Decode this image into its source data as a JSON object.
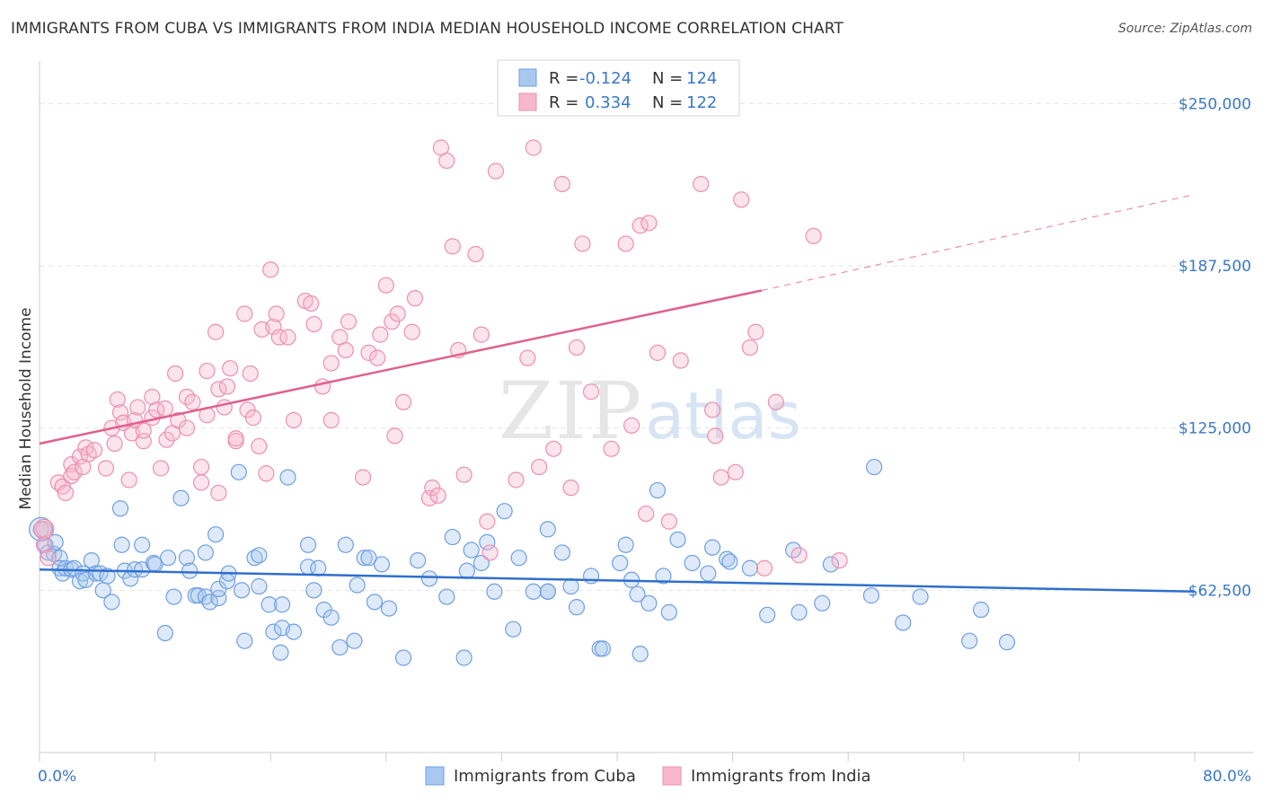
{
  "title": "IMMIGRANTS FROM CUBA VS IMMIGRANTS FROM INDIA MEDIAN HOUSEHOLD INCOME CORRELATION CHART",
  "source": "Source: ZipAtlas.com",
  "watermark": {
    "zip": "ZIP",
    "atlas": "atlas"
  },
  "legend": {
    "r_label": "R =",
    "n_label": "N =",
    "rows": [
      {
        "r": "-0.124",
        "n": "124",
        "color": "#a9c8f0",
        "stroke": "#6f9fe0"
      },
      {
        "r": "0.334",
        "n": "122",
        "color": "#f7b8cc",
        "stroke": "#ec8fae"
      }
    ]
  },
  "bottom_legend": [
    "Immigrants from Cuba",
    "Immigrants from India"
  ],
  "chart_data": {
    "type": "scatter",
    "ylabel": "Median Household Income",
    "x_tick_labels": [
      "0.0%",
      "80.0%"
    ],
    "y_tick_labels": [
      "$250,000",
      "$187,500",
      "$125,000",
      "$62,500"
    ],
    "y_ticks": [
      250000,
      187500,
      125000,
      62500
    ],
    "xlim": [
      0,
      80
    ],
    "ylim": [
      0,
      265000
    ],
    "series": [
      {
        "name": "Immigrants from Cuba",
        "color": "#6f9fe0",
        "line_color": "#2f6fce",
        "trend": {
          "x": [
            0,
            80
          ],
          "y": [
            70500,
            62000
          ]
        },
        "points": [
          [
            0.1,
            86000
          ],
          [
            0.4,
            80000
          ],
          [
            0.6,
            77000
          ],
          [
            1.0,
            76500
          ],
          [
            1.1,
            81000
          ],
          [
            1.4,
            75000
          ],
          [
            1.4,
            71000
          ],
          [
            1.6,
            69000
          ],
          [
            1.8,
            71000
          ],
          [
            2.2,
            70500
          ],
          [
            2.4,
            71000
          ],
          [
            2.8,
            66000
          ],
          [
            3.0,
            69000
          ],
          [
            3.2,
            66500
          ],
          [
            3.6,
            74000
          ],
          [
            3.9,
            69000
          ],
          [
            4.2,
            69000
          ],
          [
            4.4,
            62500
          ],
          [
            4.7,
            68000
          ],
          [
            5.0,
            58000
          ],
          [
            5.6,
            94000
          ],
          [
            5.7,
            80000
          ],
          [
            5.9,
            70000
          ],
          [
            6.3,
            67000
          ],
          [
            6.6,
            70500
          ],
          [
            7.1,
            80000
          ],
          [
            7.1,
            70500
          ],
          [
            7.9,
            73000
          ],
          [
            8.0,
            72500
          ],
          [
            8.7,
            46000
          ],
          [
            8.9,
            75000
          ],
          [
            9.3,
            60000
          ],
          [
            9.8,
            98000
          ],
          [
            10.2,
            75000
          ],
          [
            10.4,
            70000
          ],
          [
            10.8,
            60500
          ],
          [
            11.0,
            60500
          ],
          [
            11.5,
            60000
          ],
          [
            11.5,
            77000
          ],
          [
            11.8,
            58000
          ],
          [
            12.2,
            84000
          ],
          [
            12.4,
            59500
          ],
          [
            12.4,
            63000
          ],
          [
            13.0,
            66000
          ],
          [
            13.1,
            69000
          ],
          [
            13.8,
            108000
          ],
          [
            14.0,
            62500
          ],
          [
            14.2,
            43000
          ],
          [
            14.9,
            75000
          ],
          [
            15.2,
            76000
          ],
          [
            15.2,
            64000
          ],
          [
            15.9,
            57000
          ],
          [
            16.2,
            46500
          ],
          [
            16.7,
            38500
          ],
          [
            16.8,
            48000
          ],
          [
            16.8,
            57000
          ],
          [
            17.2,
            106000
          ],
          [
            17.6,
            46500
          ],
          [
            18.6,
            71500
          ],
          [
            18.6,
            80000
          ],
          [
            19.0,
            62500
          ],
          [
            19.3,
            71000
          ],
          [
            19.7,
            55000
          ],
          [
            20.2,
            52000
          ],
          [
            20.8,
            40500
          ],
          [
            21.2,
            80000
          ],
          [
            21.8,
            43000
          ],
          [
            22.0,
            64500
          ],
          [
            22.5,
            75000
          ],
          [
            22.8,
            75000
          ],
          [
            23.2,
            58000
          ],
          [
            23.7,
            72500
          ],
          [
            24.2,
            55500
          ],
          [
            25.2,
            36500
          ],
          [
            26.2,
            74000
          ],
          [
            27.0,
            67000
          ],
          [
            28.2,
            60000
          ],
          [
            28.6,
            83000
          ],
          [
            29.4,
            36500
          ],
          [
            29.6,
            70000
          ],
          [
            29.9,
            78000
          ],
          [
            30.6,
            73000
          ],
          [
            31.0,
            81000
          ],
          [
            31.5,
            62000
          ],
          [
            32.2,
            93000
          ],
          [
            32.8,
            47500
          ],
          [
            33.2,
            75000
          ],
          [
            34.2,
            62000
          ],
          [
            35.2,
            86000
          ],
          [
            35.2,
            62000
          ],
          [
            35.2,
            62000
          ],
          [
            36.2,
            77000
          ],
          [
            36.8,
            64000
          ],
          [
            37.2,
            56000
          ],
          [
            38.2,
            68000
          ],
          [
            38.8,
            40000
          ],
          [
            39.0,
            40000
          ],
          [
            40.2,
            73000
          ],
          [
            40.6,
            80000
          ],
          [
            41.0,
            66500
          ],
          [
            41.4,
            61000
          ],
          [
            41.6,
            38000
          ],
          [
            42.2,
            57500
          ],
          [
            42.8,
            101000
          ],
          [
            43.2,
            68000
          ],
          [
            43.6,
            54000
          ],
          [
            44.2,
            82000
          ],
          [
            45.2,
            73000
          ],
          [
            46.3,
            69000
          ],
          [
            46.6,
            79000
          ],
          [
            47.6,
            74500
          ],
          [
            47.8,
            73500
          ],
          [
            49.2,
            71000
          ],
          [
            50.4,
            53000
          ],
          [
            52.2,
            78000
          ],
          [
            52.6,
            54000
          ],
          [
            54.2,
            57500
          ],
          [
            54.8,
            72500
          ],
          [
            57.6,
            60500
          ],
          [
            57.8,
            110000
          ],
          [
            59.8,
            50000
          ],
          [
            61.0,
            60000
          ],
          [
            64.4,
            43000
          ],
          [
            65.2,
            55000
          ],
          [
            67.0,
            42500
          ]
        ]
      },
      {
        "name": "Immigrants from India",
        "color": "#ec8fae",
        "line_color": "#e0618d",
        "trend": {
          "x": [
            0,
            50
          ],
          "y": [
            119000,
            178000
          ]
        },
        "trend_dashed": {
          "x": [
            50,
            80
          ],
          "y": [
            178000,
            215000
          ]
        },
        "points": [
          [
            0.3,
            80000
          ],
          [
            0.3,
            86000
          ],
          [
            0.6,
            75000
          ],
          [
            1.3,
            104000
          ],
          [
            1.6,
            102500
          ],
          [
            1.8,
            100000
          ],
          [
            2.2,
            111000
          ],
          [
            2.2,
            106500
          ],
          [
            2.4,
            108000
          ],
          [
            2.8,
            114000
          ],
          [
            3.0,
            110000
          ],
          [
            3.2,
            117500
          ],
          [
            3.4,
            115000
          ],
          [
            3.8,
            116500
          ],
          [
            4.6,
            109500
          ],
          [
            5.0,
            125000
          ],
          [
            5.2,
            119000
          ],
          [
            5.4,
            136000
          ],
          [
            5.6,
            131000
          ],
          [
            5.8,
            127000
          ],
          [
            6.2,
            105000
          ],
          [
            6.4,
            123000
          ],
          [
            6.6,
            128000
          ],
          [
            6.8,
            133000
          ],
          [
            7.2,
            120000
          ],
          [
            7.2,
            124000
          ],
          [
            7.8,
            137000
          ],
          [
            7.8,
            129000
          ],
          [
            8.1,
            132000
          ],
          [
            8.4,
            109500
          ],
          [
            8.7,
            132500
          ],
          [
            8.8,
            120500
          ],
          [
            9.2,
            123000
          ],
          [
            9.4,
            146000
          ],
          [
            9.6,
            128000
          ],
          [
            10.2,
            137000
          ],
          [
            10.2,
            125000
          ],
          [
            10.6,
            135000
          ],
          [
            11.2,
            104000
          ],
          [
            11.2,
            110000
          ],
          [
            11.6,
            130000
          ],
          [
            11.6,
            147000
          ],
          [
            12.2,
            162000
          ],
          [
            12.4,
            140000
          ],
          [
            12.4,
            100000
          ],
          [
            12.8,
            133000
          ],
          [
            13.0,
            141000
          ],
          [
            13.2,
            148000
          ],
          [
            13.6,
            120000
          ],
          [
            13.6,
            121000
          ],
          [
            14.2,
            169000
          ],
          [
            14.4,
            132000
          ],
          [
            14.6,
            146000
          ],
          [
            14.8,
            129000
          ],
          [
            15.2,
            118000
          ],
          [
            15.4,
            163000
          ],
          [
            15.7,
            107500
          ],
          [
            16.0,
            186000
          ],
          [
            16.2,
            164000
          ],
          [
            16.4,
            169000
          ],
          [
            16.6,
            160000
          ],
          [
            17.2,
            160000
          ],
          [
            17.6,
            128000
          ],
          [
            18.4,
            174000
          ],
          [
            18.8,
            173000
          ],
          [
            19.0,
            165000
          ],
          [
            19.6,
            141000
          ],
          [
            20.2,
            128000
          ],
          [
            20.2,
            150000
          ],
          [
            20.8,
            160000
          ],
          [
            21.2,
            155000
          ],
          [
            21.4,
            166000
          ],
          [
            22.4,
            106000
          ],
          [
            22.8,
            154000
          ],
          [
            23.4,
            152000
          ],
          [
            23.6,
            161000
          ],
          [
            24.0,
            180000
          ],
          [
            24.4,
            166000
          ],
          [
            24.6,
            122000
          ],
          [
            24.8,
            169000
          ],
          [
            25.2,
            135000
          ],
          [
            25.8,
            162000
          ],
          [
            26.0,
            175000
          ],
          [
            27.0,
            98000
          ],
          [
            27.2,
            102000
          ],
          [
            27.6,
            99000
          ],
          [
            27.8,
            233000
          ],
          [
            28.2,
            228000
          ],
          [
            28.6,
            195000
          ],
          [
            29.0,
            155000
          ],
          [
            29.4,
            107000
          ],
          [
            30.2,
            192000
          ],
          [
            30.6,
            161000
          ],
          [
            31.0,
            89000
          ],
          [
            31.2,
            77000
          ],
          [
            31.6,
            224000
          ],
          [
            33.0,
            105000
          ],
          [
            33.8,
            152000
          ],
          [
            34.2,
            233000
          ],
          [
            34.6,
            110000
          ],
          [
            35.6,
            117000
          ],
          [
            36.2,
            219000
          ],
          [
            36.8,
            102000
          ],
          [
            37.2,
            156000
          ],
          [
            37.6,
            196000
          ],
          [
            38.2,
            139000
          ],
          [
            39.6,
            117000
          ],
          [
            40.6,
            196000
          ],
          [
            41.0,
            126000
          ],
          [
            41.6,
            203000
          ],
          [
            42.0,
            92000
          ],
          [
            42.2,
            204000
          ],
          [
            42.8,
            154000
          ],
          [
            43.6,
            89000
          ],
          [
            44.4,
            151000
          ],
          [
            45.8,
            219000
          ],
          [
            46.6,
            132000
          ],
          [
            46.8,
            122000
          ],
          [
            47.2,
            106000
          ],
          [
            48.2,
            108000
          ],
          [
            48.6,
            213000
          ],
          [
            49.2,
            156000
          ],
          [
            49.6,
            162000
          ],
          [
            50.2,
            71000
          ],
          [
            51.0,
            135000
          ],
          [
            52.6,
            76000
          ],
          [
            53.6,
            199000
          ],
          [
            55.4,
            74000
          ]
        ]
      }
    ]
  }
}
